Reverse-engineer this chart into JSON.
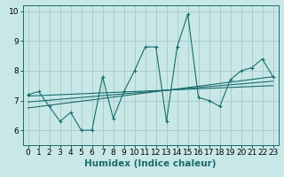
{
  "title": "",
  "xlabel": "Humidex (Indice chaleur)",
  "xlim": [
    -0.5,
    23.5
  ],
  "ylim": [
    5.5,
    10.2
  ],
  "yticks": [
    6,
    7,
    8,
    9,
    10
  ],
  "xticks": [
    0,
    1,
    2,
    3,
    4,
    5,
    6,
    7,
    8,
    9,
    10,
    11,
    12,
    13,
    14,
    15,
    16,
    17,
    18,
    19,
    20,
    21,
    22,
    23
  ],
  "bg_color": "#c8e8e8",
  "line_color": "#1a6b6b",
  "grid_color": "#a8c8c8",
  "series1_x": [
    0,
    1,
    2,
    3,
    4,
    5,
    6,
    7,
    8,
    9,
    10,
    11,
    12,
    13,
    14,
    15,
    16,
    17,
    18,
    19,
    20,
    21,
    22,
    23
  ],
  "series1_y": [
    7.2,
    7.3,
    6.8,
    6.3,
    6.6,
    6.0,
    6.0,
    7.8,
    6.4,
    7.3,
    8.0,
    8.8,
    8.8,
    6.3,
    8.8,
    9.9,
    7.1,
    7.0,
    6.8,
    7.7,
    8.0,
    8.1,
    8.4,
    7.8
  ],
  "trend1_x": [
    0,
    23
  ],
  "trend1_y": [
    7.15,
    7.5
  ],
  "trend2_x": [
    0,
    23
  ],
  "trend2_y": [
    6.95,
    7.65
  ],
  "trend3_x": [
    0,
    23
  ],
  "trend3_y": [
    6.75,
    7.8
  ],
  "tick_fontsize": 6.5,
  "xlabel_fontsize": 7.5
}
